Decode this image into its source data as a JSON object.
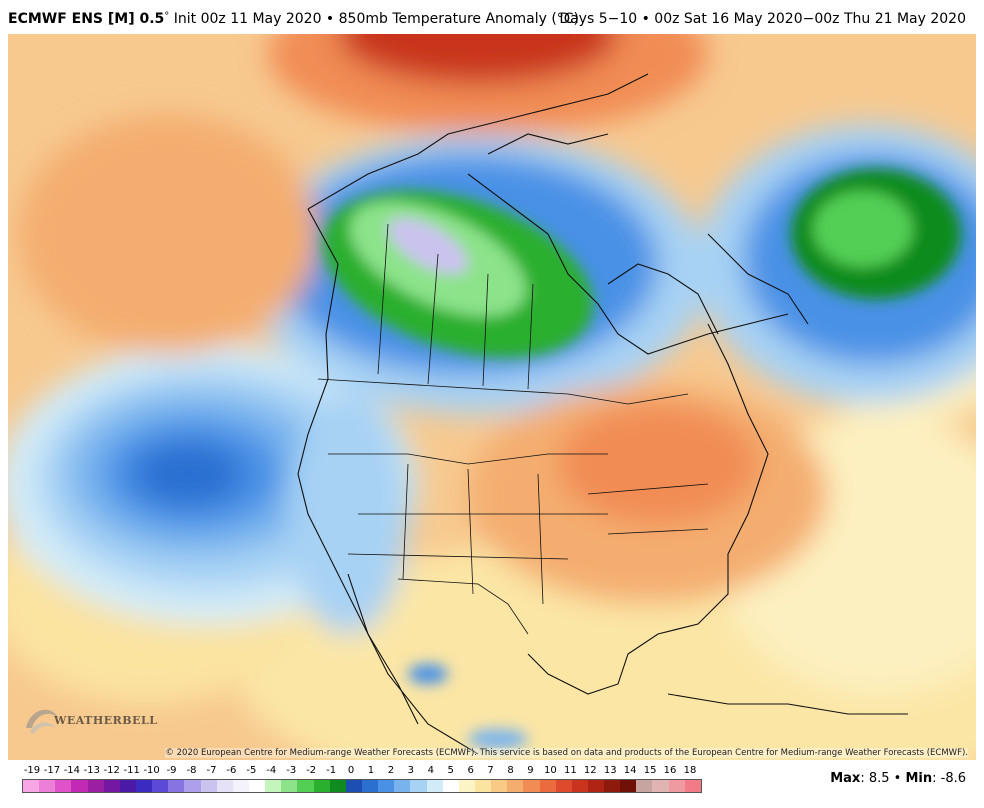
{
  "header": {
    "model": "ECMWF ENS [M] 0.5",
    "degree_symbol": "°",
    "init_text": " Init 00z 11 May 2020 • 850mb Temperature Anomaly (°C)",
    "valid_text": "Days 5−10 • 00z Sat 16 May 2020−00z Thu 21 May 2020"
  },
  "copyright": "© 2020 European Centre for Medium-range Weather Forecasts (ECMWF). This service is based on data and products of the European Centre for Medium-range Weather Forecasts (ECMWF).",
  "logo": {
    "text": "WEATHERBELL"
  },
  "legend": {
    "labels": [
      "-19",
      "-17",
      "-14",
      "-13",
      "-12",
      "-11",
      "-10",
      "-9",
      "-8",
      "-7",
      "-6",
      "-5",
      "-4",
      "-3",
      "-2",
      "-1",
      "0",
      "1",
      "2",
      "3",
      "4",
      "5",
      "6",
      "7",
      "8",
      "9",
      "10",
      "11",
      "12",
      "13",
      "14",
      "15",
      "16",
      "18"
    ],
    "colors": [
      "#f9a6e6",
      "#ee7fd8",
      "#e052c9",
      "#c22ab6",
      "#9a1fa3",
      "#7417a3",
      "#4a1aa6",
      "#3a2bc1",
      "#5c49d6",
      "#8774e2",
      "#ad9fe9",
      "#cbc3ef",
      "#e5e2f7",
      "#f4f2fb",
      "#ffffff",
      "#c3f5bd",
      "#8ce38a",
      "#53cf54",
      "#2aaf2e",
      "#108b1d",
      "#1c4fb1",
      "#2b6fd1",
      "#4a91e6",
      "#78b3ee",
      "#a7d2f4",
      "#d2ebf8",
      "#ffffff",
      "#fdf4c6",
      "#fbe3a0",
      "#f8ca86",
      "#f4ad6f",
      "#f18c55",
      "#eb6a3e",
      "#dd4b2c",
      "#c9341e",
      "#b02414",
      "#8e1a0e",
      "#701108",
      "#c7a4a0",
      "#dfb4b2",
      "#ee9aa0",
      "#f27b87"
    ]
  },
  "stats": {
    "max_label": "Max",
    "max_value": ": 8.5",
    "sep": " • ",
    "min_label": "Min",
    "min_value": ": -8.6"
  }
}
